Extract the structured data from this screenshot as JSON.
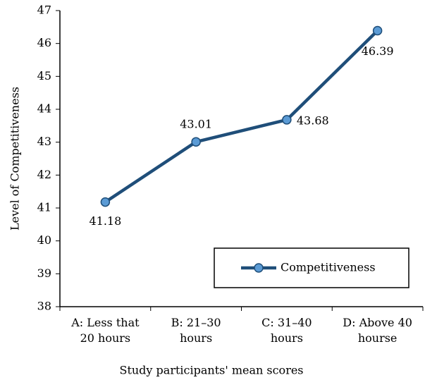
{
  "chart_data": {
    "type": "line",
    "categories": [
      "A: Less that 20 hours",
      "B: 21–30 hours",
      "C: 31–40 hours",
      "D: Above 40 hourse"
    ],
    "series": [
      {
        "name": "Competitiveness",
        "color": "#1f4e79",
        "marker_color": "#5b9bd5",
        "values": [
          41.18,
          43.01,
          43.68,
          46.39
        ]
      }
    ],
    "xlabel": "Study participants' mean scores",
    "ylabel": "Level of Competitiveness",
    "ylim": [
      38,
      47
    ],
    "yticks": [
      38,
      39,
      40,
      41,
      42,
      43,
      44,
      45,
      46,
      47
    ],
    "legend": "lower right"
  }
}
